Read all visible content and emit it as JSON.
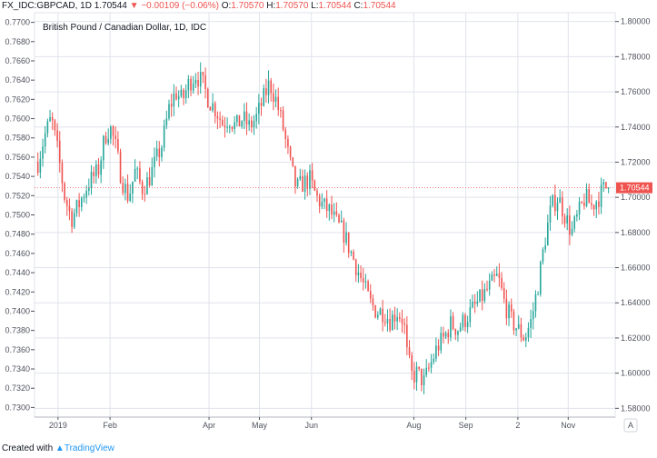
{
  "header": {
    "symbol": "FX_IDC:GBPCAD, 1D",
    "last": "1.70544",
    "change": "−0.00109 (−0.06%)",
    "o_label": "O:",
    "o": "1.70570",
    "h_label": "H:",
    "h": "1.70570",
    "l_label": "L:",
    "l": "1.70544",
    "c_label": "C:",
    "c": "1.70544"
  },
  "footer": {
    "created": "Created with",
    "brand": "TradingView"
  },
  "colors": {
    "up": "#26a69a",
    "down": "#ef5350",
    "grid": "#e0e3eb",
    "price_line": "#ef5350",
    "brand": "#2196f3"
  },
  "chart_data": {
    "type": "candlestick",
    "title": "British Pound / Canadian Dollar, 1D, IDC",
    "left_axis": {
      "min": 0.729,
      "max": 0.771,
      "ticks": [
        "0.7300",
        "0.7320",
        "0.7340",
        "0.7360",
        "0.7380",
        "0.7400",
        "0.7420",
        "0.7440",
        "0.7460",
        "0.7480",
        "0.7500",
        "0.7520",
        "0.7540",
        "0.7560",
        "0.7580",
        "0.7600",
        "0.7620",
        "0.7640",
        "0.7660",
        "0.7680",
        "0.7700"
      ]
    },
    "right_axis": {
      "min": 1.575,
      "max": 1.805,
      "ticks": [
        "1.58000",
        "1.60000",
        "1.62000",
        "1.64000",
        "1.66000",
        "1.68000",
        "1.70000",
        "1.72000",
        "1.74000",
        "1.76000",
        "1.78000",
        "1.80000"
      ],
      "last_price_label": "1.70544",
      "last_price": 1.70544
    },
    "x_labels": [
      {
        "label": "2019",
        "day": 0
      },
      {
        "label": "Feb",
        "day": 31
      },
      {
        "label": "Apr",
        "day": 90
      },
      {
        "label": "May",
        "day": 120
      },
      {
        "label": "Jun",
        "day": 151
      },
      {
        "label": "Aug",
        "day": 212
      },
      {
        "label": "Sep",
        "day": 243
      },
      {
        "label": "2",
        "day": 274
      },
      {
        "label": "Nov",
        "day": 304
      }
    ],
    "x_range": [
      -14,
      332
    ],
    "axis_corner": "A",
    "anchors": [
      {
        "day": -12,
        "close": 1.72
      },
      {
        "day": -8,
        "close": 1.735
      },
      {
        "day": -4,
        "close": 1.745
      },
      {
        "day": 0,
        "close": 1.725
      },
      {
        "day": 4,
        "close": 1.7
      },
      {
        "day": 8,
        "close": 1.688
      },
      {
        "day": 12,
        "close": 1.695
      },
      {
        "day": 18,
        "close": 1.708
      },
      {
        "day": 24,
        "close": 1.715
      },
      {
        "day": 28,
        "close": 1.735
      },
      {
        "day": 31,
        "close": 1.74
      },
      {
        "day": 34,
        "close": 1.73
      },
      {
        "day": 38,
        "close": 1.71
      },
      {
        "day": 42,
        "close": 1.7
      },
      {
        "day": 46,
        "close": 1.715
      },
      {
        "day": 50,
        "close": 1.705
      },
      {
        "day": 54,
        "close": 1.71
      },
      {
        "day": 58,
        "close": 1.72
      },
      {
        "day": 62,
        "close": 1.73
      },
      {
        "day": 66,
        "close": 1.75
      },
      {
        "day": 70,
        "close": 1.76
      },
      {
        "day": 74,
        "close": 1.755
      },
      {
        "day": 78,
        "close": 1.765
      },
      {
        "day": 82,
        "close": 1.77
      },
      {
        "day": 86,
        "close": 1.765
      },
      {
        "day": 90,
        "close": 1.755
      },
      {
        "day": 94,
        "close": 1.75
      },
      {
        "day": 98,
        "close": 1.742
      },
      {
        "day": 102,
        "close": 1.745
      },
      {
        "day": 106,
        "close": 1.74
      },
      {
        "day": 110,
        "close": 1.745
      },
      {
        "day": 114,
        "close": 1.74
      },
      {
        "day": 118,
        "close": 1.745
      },
      {
        "day": 122,
        "close": 1.755
      },
      {
        "day": 126,
        "close": 1.765
      },
      {
        "day": 130,
        "close": 1.755
      },
      {
        "day": 134,
        "close": 1.74
      },
      {
        "day": 138,
        "close": 1.72
      },
      {
        "day": 142,
        "close": 1.705
      },
      {
        "day": 146,
        "close": 1.708
      },
      {
        "day": 150,
        "close": 1.71
      },
      {
        "day": 154,
        "close": 1.7
      },
      {
        "day": 158,
        "close": 1.695
      },
      {
        "day": 162,
        "close": 1.692
      },
      {
        "day": 166,
        "close": 1.685
      },
      {
        "day": 170,
        "close": 1.68
      },
      {
        "day": 174,
        "close": 1.67
      },
      {
        "day": 178,
        "close": 1.66
      },
      {
        "day": 182,
        "close": 1.65
      },
      {
        "day": 186,
        "close": 1.64
      },
      {
        "day": 190,
        "close": 1.635
      },
      {
        "day": 194,
        "close": 1.635
      },
      {
        "day": 198,
        "close": 1.63
      },
      {
        "day": 202,
        "close": 1.635
      },
      {
        "day": 206,
        "close": 1.63
      },
      {
        "day": 208,
        "close": 1.61
      },
      {
        "day": 211,
        "close": 1.598
      },
      {
        "day": 214,
        "close": 1.6
      },
      {
        "day": 218,
        "close": 1.595
      },
      {
        "day": 222,
        "close": 1.605
      },
      {
        "day": 226,
        "close": 1.615
      },
      {
        "day": 230,
        "close": 1.62
      },
      {
        "day": 234,
        "close": 1.628
      },
      {
        "day": 238,
        "close": 1.625
      },
      {
        "day": 242,
        "close": 1.63
      },
      {
        "day": 246,
        "close": 1.635
      },
      {
        "day": 250,
        "close": 1.64
      },
      {
        "day": 254,
        "close": 1.645
      },
      {
        "day": 258,
        "close": 1.65
      },
      {
        "day": 262,
        "close": 1.655
      },
      {
        "day": 266,
        "close": 1.64
      },
      {
        "day": 270,
        "close": 1.63
      },
      {
        "day": 274,
        "close": 1.625
      },
      {
        "day": 278,
        "close": 1.62
      },
      {
        "day": 282,
        "close": 1.63
      },
      {
        "day": 286,
        "close": 1.65
      },
      {
        "day": 290,
        "close": 1.675
      },
      {
        "day": 294,
        "close": 1.695
      },
      {
        "day": 298,
        "close": 1.7
      },
      {
        "day": 302,
        "close": 1.69
      },
      {
        "day": 306,
        "close": 1.68
      },
      {
        "day": 310,
        "close": 1.69
      },
      {
        "day": 314,
        "close": 1.7
      },
      {
        "day": 318,
        "close": 1.695
      },
      {
        "day": 322,
        "close": 1.7
      },
      {
        "day": 326,
        "close": 1.706
      },
      {
        "day": 328,
        "close": 1.7054
      }
    ]
  }
}
